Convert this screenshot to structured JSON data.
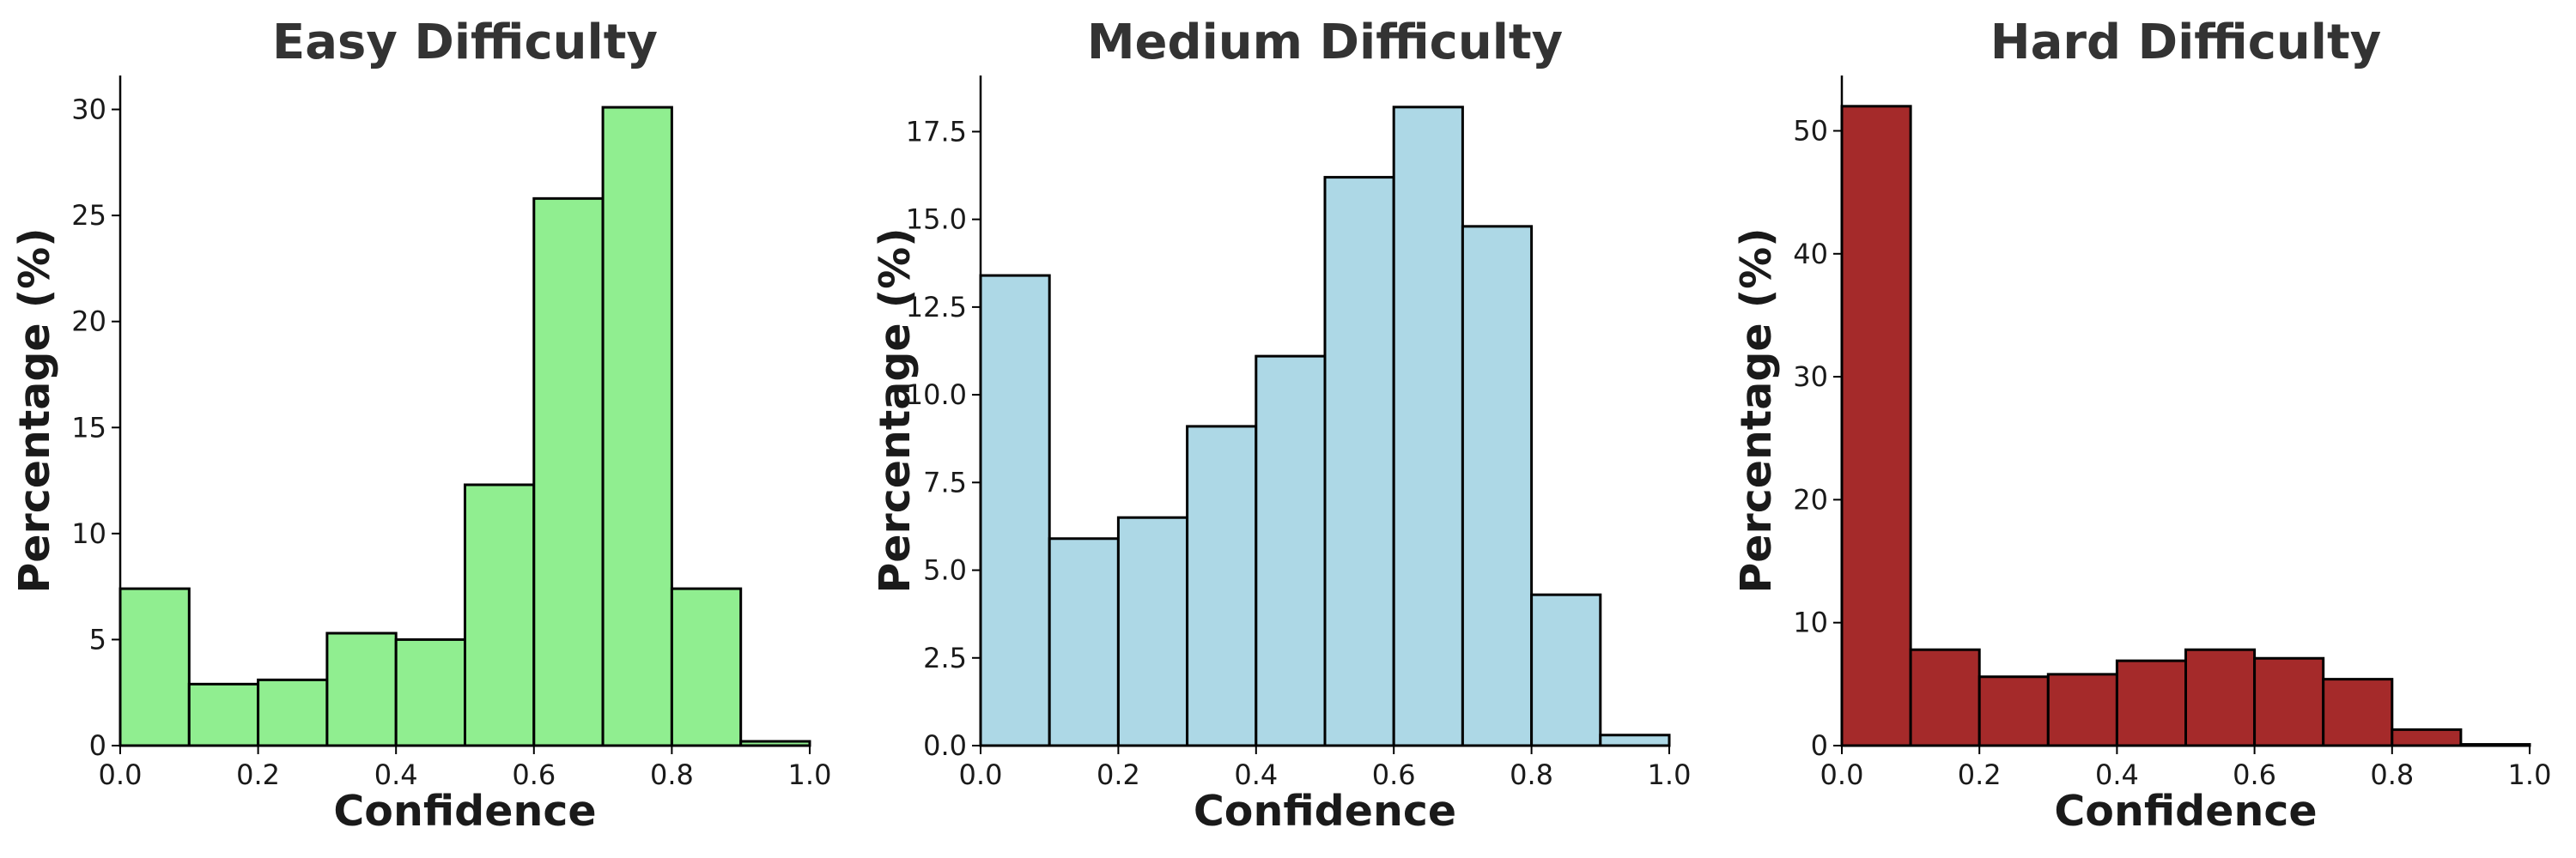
{
  "chart_data": [
    {
      "type": "bar",
      "title": "Easy Difficulty",
      "xlabel": "Confidence",
      "ylabel": "Percentage (%)",
      "color": "#90ee90",
      "edge_color": "#000000",
      "bin_edges": [
        0.0,
        0.1,
        0.2,
        0.3,
        0.4,
        0.5,
        0.6,
        0.7,
        0.8,
        0.9,
        1.0
      ],
      "values": [
        7.4,
        2.9,
        3.1,
        5.3,
        5.0,
        12.3,
        25.8,
        30.1,
        7.4,
        0.2
      ],
      "xlim": [
        0.0,
        1.0
      ],
      "ylim": [
        0,
        31.6
      ],
      "xticks": [
        0.0,
        0.2,
        0.4,
        0.6,
        0.8,
        1.0
      ],
      "xtick_labels": [
        "0.0",
        "0.2",
        "0.4",
        "0.6",
        "0.8",
        "1.0"
      ],
      "yticks": [
        0,
        5,
        10,
        15,
        20,
        25,
        30
      ],
      "ytick_labels": [
        "0",
        "5",
        "10",
        "15",
        "20",
        "25",
        "30"
      ],
      "grid": false
    },
    {
      "type": "bar",
      "title": "Medium Difficulty",
      "xlabel": "Confidence",
      "ylabel": "Percentage (%)",
      "color": "#add8e6",
      "edge_color": "#000000",
      "bin_edges": [
        0.0,
        0.1,
        0.2,
        0.3,
        0.4,
        0.5,
        0.6,
        0.7,
        0.8,
        0.9,
        1.0
      ],
      "values": [
        13.4,
        5.9,
        6.5,
        9.1,
        11.1,
        16.2,
        18.2,
        14.8,
        4.3,
        0.3
      ],
      "xlim": [
        0.0,
        1.0
      ],
      "ylim": [
        0,
        19.1
      ],
      "xticks": [
        0.0,
        0.2,
        0.4,
        0.6,
        0.8,
        1.0
      ],
      "xtick_labels": [
        "0.0",
        "0.2",
        "0.4",
        "0.6",
        "0.8",
        "1.0"
      ],
      "yticks": [
        0,
        2.5,
        5,
        7.5,
        10,
        12.5,
        15,
        17.5
      ],
      "ytick_labels": [
        "0.0",
        "2.5",
        "5.0",
        "7.5",
        "10.0",
        "12.5",
        "15.0",
        "17.5"
      ],
      "grid": false
    },
    {
      "type": "bar",
      "title": "Hard Difficulty",
      "xlabel": "Confidence",
      "ylabel": "Percentage (%)",
      "color": "#a52a2a",
      "edge_color": "#000000",
      "bin_edges": [
        0.0,
        0.1,
        0.2,
        0.3,
        0.4,
        0.5,
        0.6,
        0.7,
        0.8,
        0.9,
        1.0
      ],
      "values": [
        52.0,
        7.8,
        5.6,
        5.8,
        6.9,
        7.8,
        7.1,
        5.4,
        1.3,
        0.1
      ],
      "xlim": [
        0.0,
        1.0
      ],
      "ylim": [
        0,
        54.5
      ],
      "xticks": [
        0.0,
        0.2,
        0.4,
        0.6,
        0.8,
        1.0
      ],
      "xtick_labels": [
        "0.0",
        "0.2",
        "0.4",
        "0.6",
        "0.8",
        "1.0"
      ],
      "yticks": [
        0,
        10,
        20,
        30,
        40,
        50
      ],
      "ytick_labels": [
        "0",
        "10",
        "20",
        "30",
        "40",
        "50"
      ],
      "grid": false
    }
  ]
}
